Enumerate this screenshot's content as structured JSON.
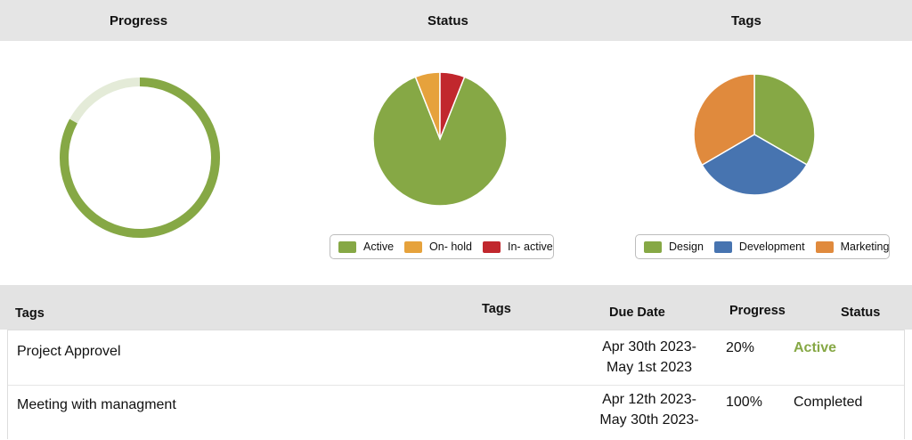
{
  "headers": {
    "progress": "Progress",
    "status": "Status",
    "tags": "Tags"
  },
  "colors": {
    "green": "#86a845",
    "green_light": "#e4ebd8",
    "orange_hold": "#e6a23c",
    "red": "#c1272d",
    "blue": "#4774b0",
    "orange_tag": "#e08a3d",
    "active_text": "#86a845"
  },
  "chart_data": [
    {
      "type": "pie",
      "variant": "donut",
      "title": "Progress",
      "series": [
        {
          "name": "",
          "value": 83
        },
        {
          "name": "",
          "value": 17
        }
      ],
      "colors": [
        "#86a845",
        "#e4ebd8"
      ]
    },
    {
      "type": "pie",
      "title": "Status",
      "series": [
        {
          "name": "Active",
          "value": 88
        },
        {
          "name": "On- hold",
          "value": 6
        },
        {
          "name": "In- active",
          "value": 6
        }
      ],
      "colors": [
        "#86a845",
        "#e6a23c",
        "#c1272d"
      ],
      "legend": "bottom"
    },
    {
      "type": "pie",
      "title": "Tags",
      "series": [
        {
          "name": "Design",
          "value": 33.3
        },
        {
          "name": "Development",
          "value": 33.3
        },
        {
          "name": "Marketing",
          "value": 33.4
        }
      ],
      "colors": [
        "#86a845",
        "#4774b0",
        "#e08a3d"
      ],
      "legend": "bottom"
    }
  ],
  "table": {
    "columns": [
      "Tags",
      "Tags",
      "Due Date",
      "Progress",
      "Status"
    ],
    "rows": [
      {
        "name": "Project Approvel",
        "due_line1": "Apr 30th 2023-",
        "due_line2": "May 1st 2023",
        "progress": "20%",
        "status": "Active"
      },
      {
        "name": "Meeting with managment",
        "due_line1": "Apr 12th 2023-",
        "due_line2": "May 30th 2023-",
        "progress": "100%",
        "status": "Completed"
      }
    ]
  }
}
